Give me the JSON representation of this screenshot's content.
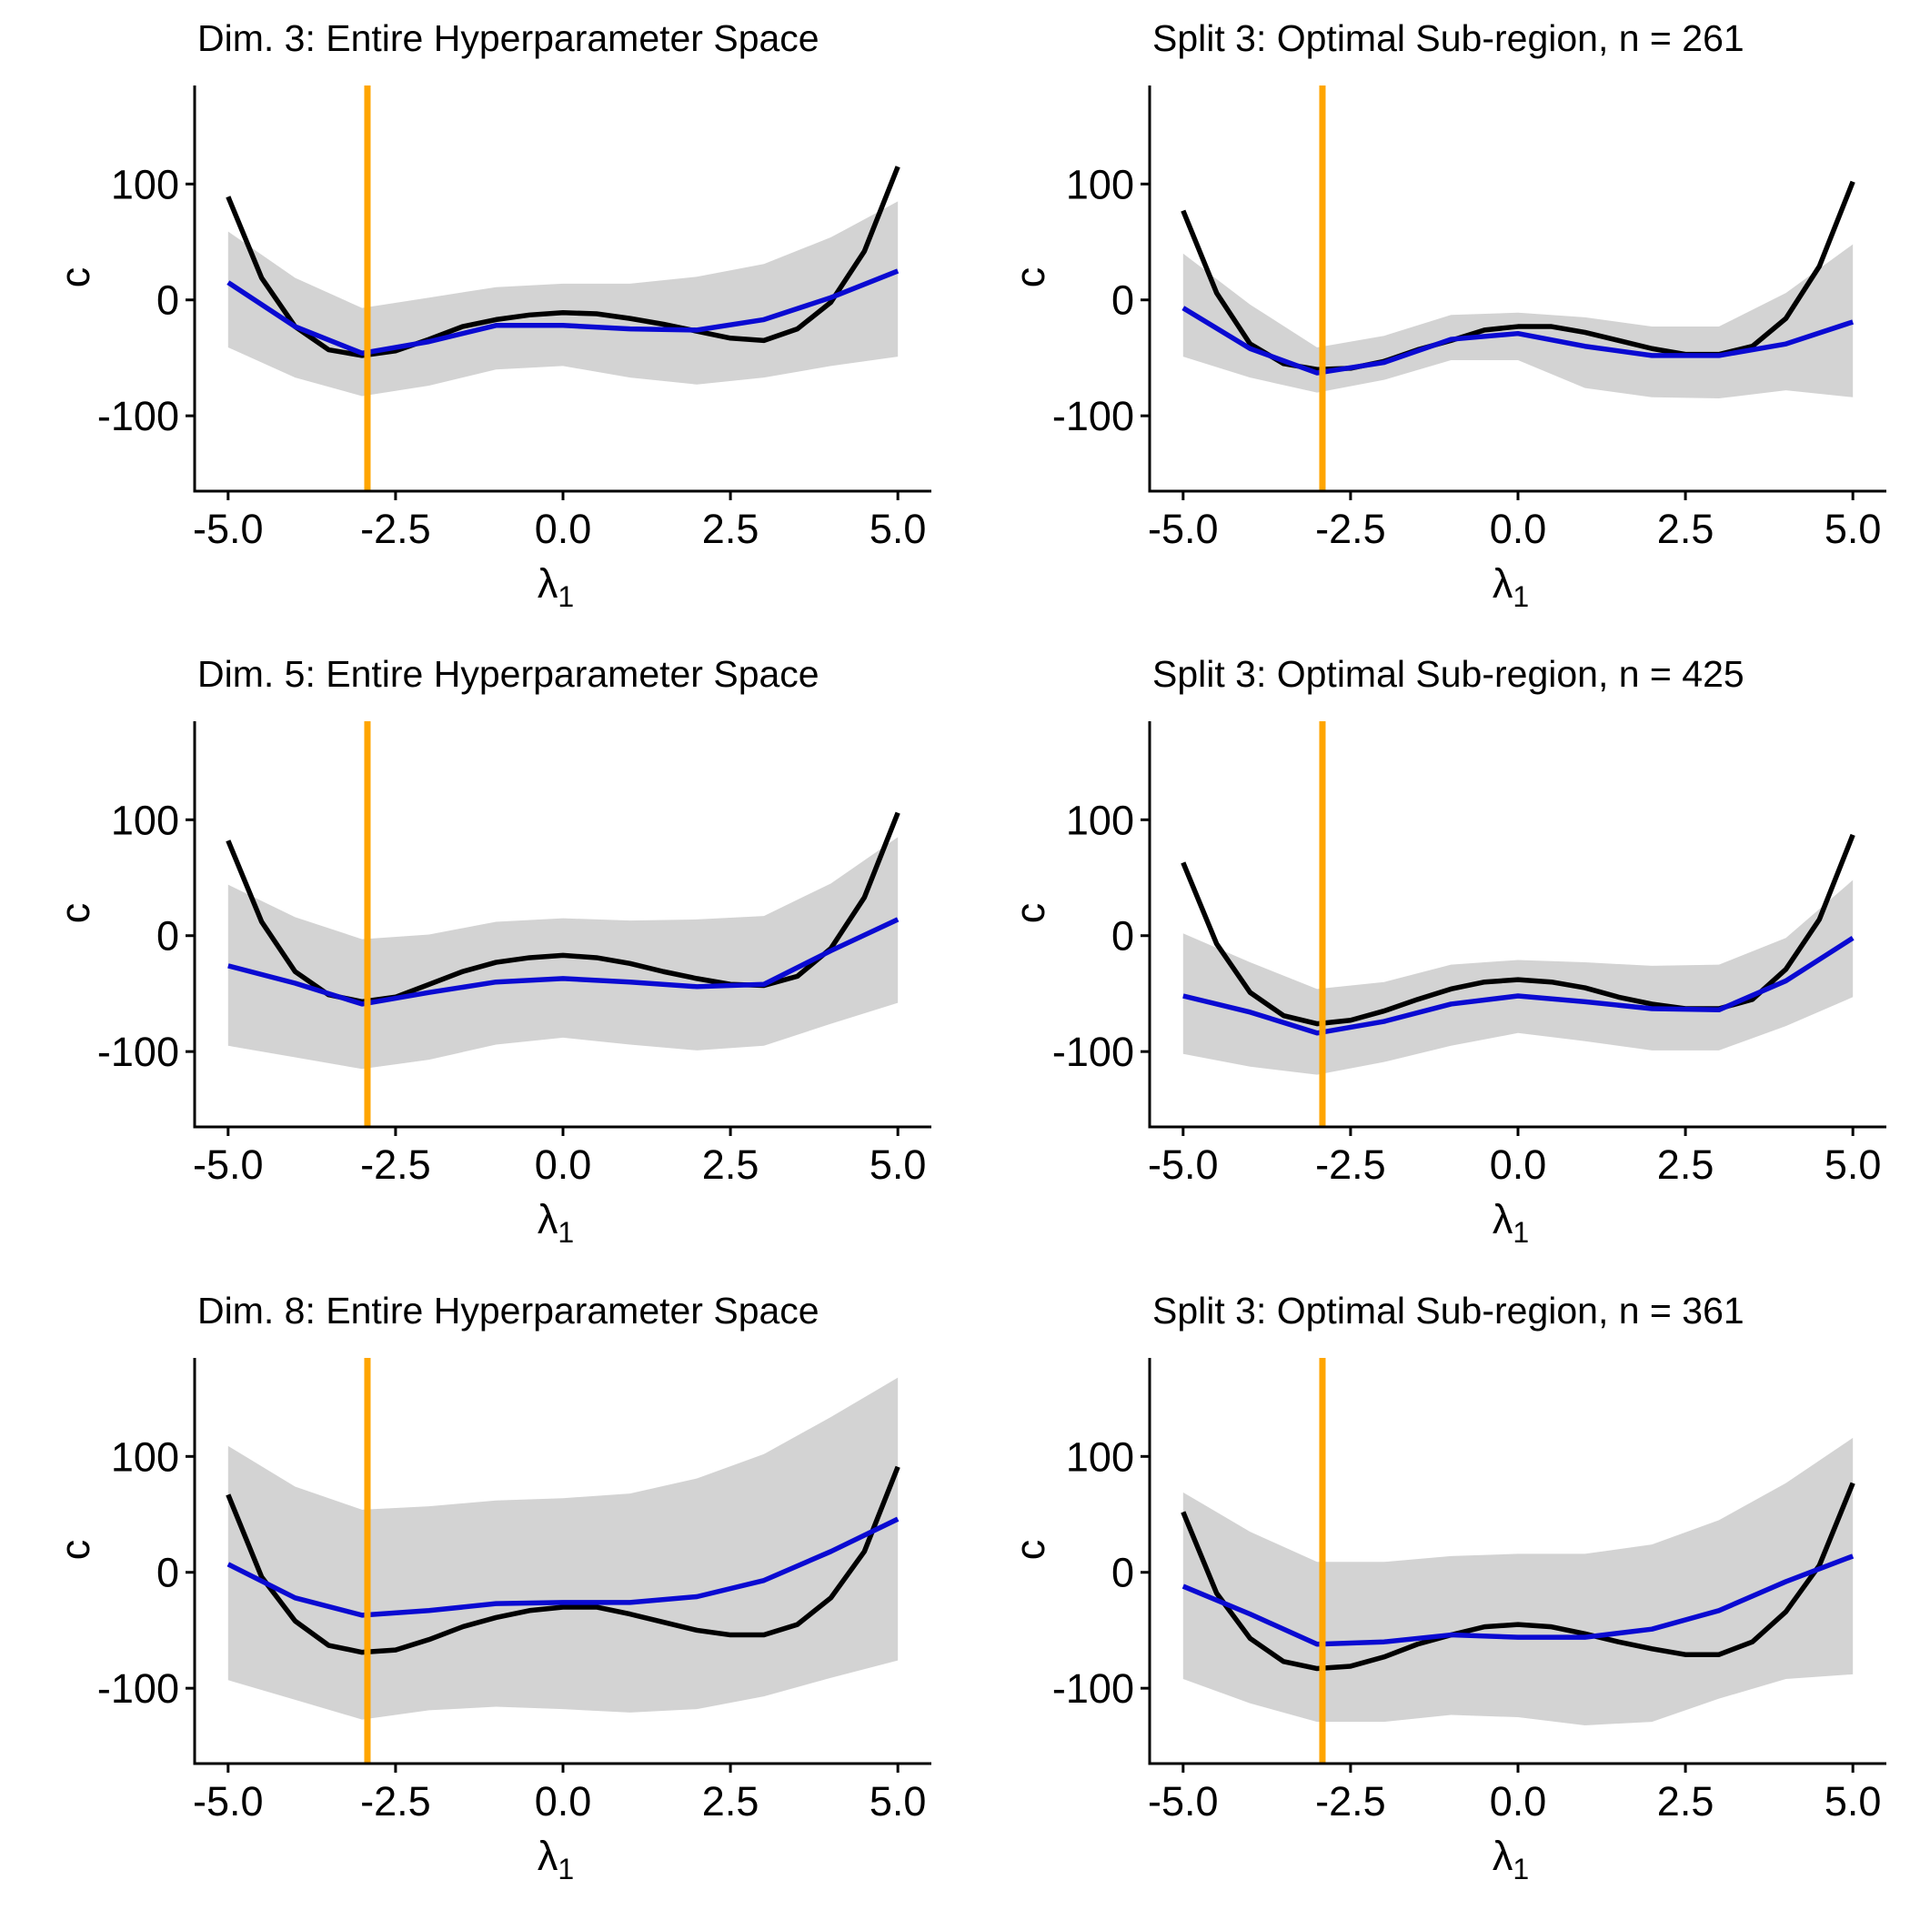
{
  "chart_data": [
    {
      "type": "line",
      "title": "Dim. 3: Entire Hyperparameter Space",
      "xlabel": "λ",
      "xlabel_sub": "1",
      "ylabel": "c",
      "xlim": [
        -5.5,
        5.5
      ],
      "ylim": [
        -165,
        185
      ],
      "xticks": [
        "-5.0",
        "-2.5",
        "0.0",
        "2.5",
        "5.0"
      ],
      "yticks": [
        "100",
        "0",
        "-100"
      ],
      "vline": -2.92,
      "x_fine": [
        -5,
        -4.5,
        -4,
        -3.5,
        -3,
        -2.5,
        -2,
        -1.5,
        -1,
        -0.5,
        0,
        0.5,
        1,
        1.5,
        2,
        2.5,
        3,
        3.5,
        4,
        4.5,
        5
      ],
      "black": [
        89,
        19,
        -23,
        -43,
        -48,
        -44,
        -34,
        -23,
        -17,
        -13,
        -11,
        -12,
        -16,
        -21,
        -27,
        -33,
        -35,
        -25,
        -2,
        42,
        115
      ],
      "x_coarse": [
        -5,
        -4,
        -3,
        -2,
        -1,
        0,
        1,
        2,
        3,
        4,
        5
      ],
      "blue": [
        15,
        -23,
        -46,
        -36,
        -22,
        -22,
        -25,
        -26,
        -17,
        2,
        25
      ],
      "band_upper": [
        59,
        19,
        -7,
        2,
        11,
        14,
        14,
        20,
        31,
        54,
        85
      ],
      "band_lower": [
        -41,
        -67,
        -83,
        -74,
        -60,
        -57,
        -67,
        -73,
        -67,
        -57,
        -49
      ]
    },
    {
      "type": "line",
      "title": "Split 3: Optimal Sub-region, n = 261",
      "xlabel": "λ",
      "xlabel_sub": "1",
      "ylabel": "c",
      "xlim": [
        -5.5,
        5.5
      ],
      "ylim": [
        -165,
        185
      ],
      "xticks": [
        "-5.0",
        "-2.5",
        "0.0",
        "2.5",
        "5.0"
      ],
      "yticks": [
        "100",
        "0",
        "-100"
      ],
      "vline": -2.92,
      "x_fine": [
        -5,
        -4.5,
        -4,
        -3.5,
        -3,
        -2.5,
        -2,
        -1.5,
        -1,
        -0.5,
        0,
        0.5,
        1,
        1.5,
        2,
        2.5,
        3,
        3.5,
        4,
        4.5,
        5
      ],
      "black": [
        77,
        6,
        -38,
        -55,
        -60,
        -59,
        -53,
        -43,
        -35,
        -26,
        -23,
        -23,
        -28,
        -35,
        -42,
        -47,
        -47,
        -40,
        -16,
        29,
        102
      ],
      "x_coarse": [
        -5,
        -4,
        -3,
        -2,
        -1,
        0,
        1,
        2,
        3,
        4,
        5
      ],
      "blue": [
        -7,
        -42,
        -63,
        -54,
        -34,
        -29,
        -40,
        -48,
        -48,
        -38,
        -19
      ],
      "band_upper": [
        40,
        -4,
        -41,
        -31,
        -13,
        -11,
        -15,
        -23,
        -23,
        6,
        48
      ],
      "band_lower": [
        -49,
        -67,
        -80,
        -69,
        -52,
        -52,
        -76,
        -84,
        -85,
        -78,
        -84
      ]
    },
    {
      "type": "line",
      "title": "Dim. 5: Entire Hyperparameter Space",
      "xlabel": "λ",
      "xlabel_sub": "1",
      "ylabel": "c",
      "xlim": [
        -5.5,
        5.5
      ],
      "ylim": [
        -165,
        185
      ],
      "xticks": [
        "-5.0",
        "-2.5",
        "0.0",
        "2.5",
        "5.0"
      ],
      "yticks": [
        "100",
        "0",
        "-100"
      ],
      "vline": -2.92,
      "x_fine": [
        -5,
        -4.5,
        -4,
        -3.5,
        -3,
        -2.5,
        -2,
        -1.5,
        -1,
        -0.5,
        0,
        0.5,
        1,
        1.5,
        2,
        2.5,
        3,
        3.5,
        4,
        4.5,
        5
      ],
      "black": [
        82,
        12,
        -31,
        -51,
        -57,
        -53,
        -42,
        -31,
        -23,
        -19,
        -17,
        -19,
        -24,
        -31,
        -37,
        -42,
        -43,
        -35,
        -11,
        33,
        106
      ],
      "x_coarse": [
        -5,
        -4,
        -3,
        -2,
        -1,
        0,
        1,
        2,
        3,
        4,
        5
      ],
      "blue": [
        -26,
        -41,
        -59,
        -49,
        -40,
        -37,
        -40,
        -44,
        -42,
        -13,
        14
      ],
      "band_upper": [
        44,
        16,
        -3,
        1,
        12,
        15,
        13,
        14,
        17,
        45,
        85
      ],
      "band_lower": [
        -95,
        -105,
        -115,
        -107,
        -94,
        -88,
        -94,
        -99,
        -95,
        -76,
        -58
      ]
    },
    {
      "type": "line",
      "title": "Split 3: Optimal Sub-region, n = 425",
      "xlabel": "λ",
      "xlabel_sub": "1",
      "ylabel": "c",
      "xlim": [
        -5.5,
        5.5
      ],
      "ylim": [
        -165,
        185
      ],
      "xticks": [
        "-5.0",
        "-2.5",
        "0.0",
        "2.5",
        "5.0"
      ],
      "yticks": [
        "100",
        "0",
        "-100"
      ],
      "vline": -2.92,
      "x_fine": [
        -5,
        -4.5,
        -4,
        -3.5,
        -3,
        -2.5,
        -2,
        -1.5,
        -1,
        -0.5,
        0,
        0.5,
        1,
        1.5,
        2,
        2.5,
        3,
        3.5,
        4,
        4.5,
        5
      ],
      "black": [
        63,
        -7,
        -49,
        -69,
        -76,
        -73,
        -65,
        -55,
        -46,
        -40,
        -38,
        -40,
        -45,
        -53,
        -59,
        -63,
        -63,
        -55,
        -29,
        14,
        87
      ],
      "x_coarse": [
        -5,
        -4,
        -3,
        -2,
        -1,
        0,
        1,
        2,
        3,
        4,
        5
      ],
      "blue": [
        -52,
        -66,
        -84,
        -74,
        -59,
        -52,
        -57,
        -63,
        -64,
        -39,
        -2
      ],
      "band_upper": [
        2,
        -23,
        -46,
        -40,
        -25,
        -21,
        -23,
        -26,
        -25,
        -2,
        48
      ],
      "band_lower": [
        -102,
        -113,
        -120,
        -109,
        -95,
        -84,
        -91,
        -99,
        -99,
        -78,
        -53
      ]
    },
    {
      "type": "line",
      "title": "Dim. 8: Entire Hyperparameter Space",
      "xlabel": "λ",
      "xlabel_sub": "1",
      "ylabel": "c",
      "xlim": [
        -5.5,
        5.5
      ],
      "ylim": [
        -165,
        185
      ],
      "xticks": [
        "-5.0",
        "-2.5",
        "0.0",
        "2.5",
        "5.0"
      ],
      "yticks": [
        "100",
        "0",
        "-100"
      ],
      "vline": -2.92,
      "x_fine": [
        -5,
        -4.5,
        -4,
        -3.5,
        -3,
        -2.5,
        -2,
        -1.5,
        -1,
        -0.5,
        0,
        0.5,
        1,
        1.5,
        2,
        2.5,
        3,
        3.5,
        4,
        4.5,
        5
      ],
      "black": [
        67,
        -4,
        -42,
        -63,
        -69,
        -67,
        -58,
        -47,
        -39,
        -33,
        -30,
        -30,
        -36,
        -43,
        -50,
        -54,
        -54,
        -45,
        -22,
        18,
        91
      ],
      "x_coarse": [
        -5,
        -4,
        -3,
        -2,
        -1,
        0,
        1,
        2,
        3,
        4,
        5
      ],
      "blue": [
        7,
        -22,
        -37,
        -33,
        -27,
        -26,
        -26,
        -21,
        -7,
        18,
        46
      ],
      "band_upper": [
        109,
        74,
        54,
        57,
        62,
        64,
        68,
        81,
        102,
        134,
        168
      ],
      "band_lower": [
        -93,
        -110,
        -127,
        -119,
        -116,
        -118,
        -121,
        -118,
        -107,
        -91,
        -76
      ]
    },
    {
      "type": "line",
      "title": "Split 3: Optimal Sub-region, n = 361",
      "xlabel": "λ",
      "xlabel_sub": "1",
      "ylabel": "c",
      "xlim": [
        -5.5,
        5.5
      ],
      "ylim": [
        -165,
        185
      ],
      "xticks": [
        "-5.0",
        "-2.5",
        "0.0",
        "2.5",
        "5.0"
      ],
      "yticks": [
        "100",
        "0",
        "-100"
      ],
      "vline": -2.92,
      "x_fine": [
        -5,
        -4.5,
        -4,
        -3.5,
        -3,
        -2.5,
        -2,
        -1.5,
        -1,
        -0.5,
        0,
        0.5,
        1,
        1.5,
        2,
        2.5,
        3,
        3.5,
        4,
        4.5,
        5
      ],
      "black": [
        52,
        -18,
        -57,
        -77,
        -83,
        -81,
        -73,
        -62,
        -54,
        -47,
        -45,
        -47,
        -53,
        -60,
        -66,
        -71,
        -71,
        -60,
        -34,
        6,
        77
      ],
      "x_coarse": [
        -5,
        -4,
        -3,
        -2,
        -1,
        0,
        1,
        2,
        3,
        4,
        5
      ],
      "blue": [
        -12,
        -36,
        -62,
        -60,
        -54,
        -56,
        -56,
        -49,
        -33,
        -8,
        14
      ],
      "band_upper": [
        69,
        35,
        9,
        9,
        14,
        16,
        16,
        24,
        45,
        77,
        116
      ],
      "band_lower": [
        -92,
        -113,
        -129,
        -129,
        -123,
        -125,
        -132,
        -129,
        -109,
        -92,
        -88
      ]
    }
  ],
  "colors": {
    "band": "#d3d3d3",
    "black_line": "#000000",
    "blue_line": "#0a0ad2",
    "vline": "#ffa500"
  }
}
